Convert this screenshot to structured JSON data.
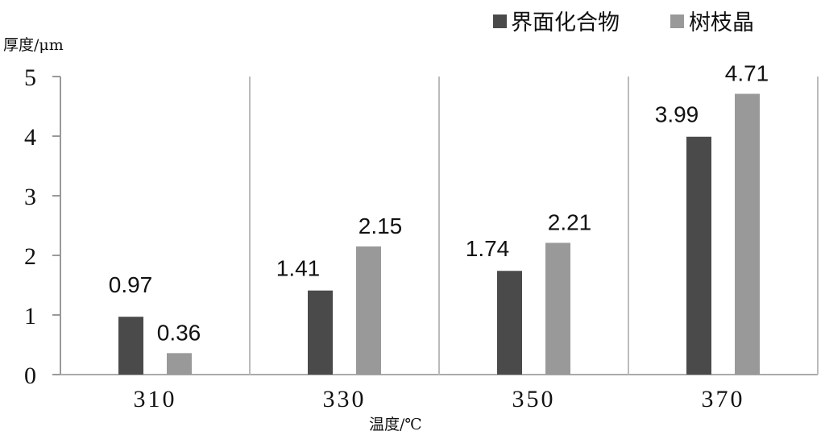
{
  "chart_data": {
    "type": "bar",
    "title": "",
    "xlabel": "温度/℃",
    "ylabel": "厚度/μm",
    "categories": [
      "310",
      "330",
      "350",
      "370"
    ],
    "series": [
      {
        "name": "界面化合物",
        "values": [
          0.97,
          1.41,
          1.74,
          3.99
        ],
        "color": "#4a4a4a"
      },
      {
        "name": "树枝晶",
        "values": [
          0.36,
          2.15,
          2.21,
          4.71
        ],
        "color": "#999999"
      }
    ],
    "data_labels": [
      [
        "0.97",
        "1.41",
        "1.74",
        "3.99"
      ],
      [
        "0.36",
        "2.15",
        "2.21",
        "4.71"
      ]
    ],
    "ylim": [
      0,
      5
    ],
    "yticks": [
      "0",
      "1",
      "2",
      "3",
      "4",
      "5"
    ],
    "grid": false,
    "legend": "top-right"
  }
}
